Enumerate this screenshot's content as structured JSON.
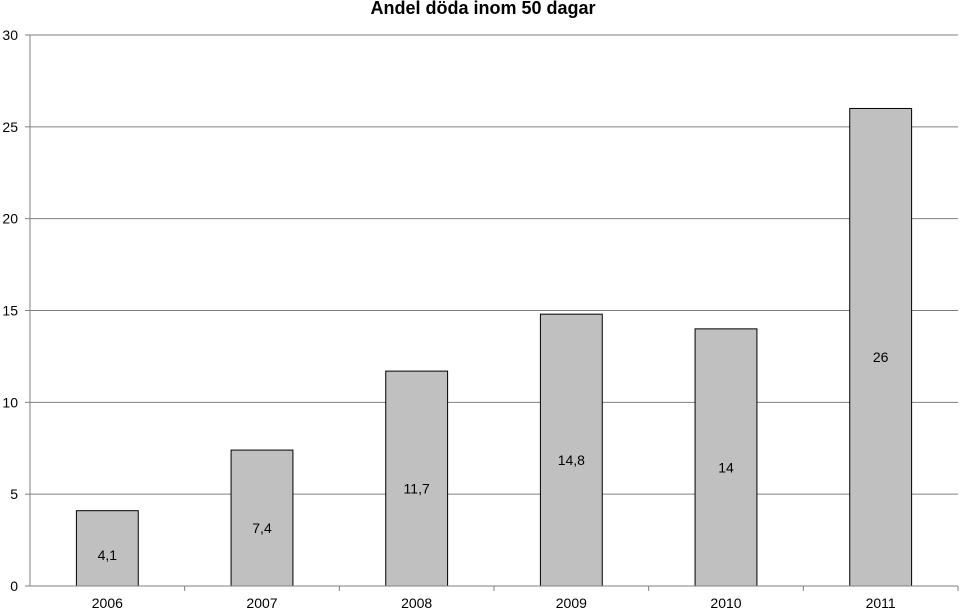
{
  "chart_data": {
    "type": "bar",
    "title": "Andel döda inom 50 dagar",
    "xlabel": "",
    "ylabel": "",
    "categories": [
      "2006",
      "2007",
      "2008",
      "2009",
      "2010",
      "2011"
    ],
    "values": [
      4.1,
      7.4,
      11.7,
      14.8,
      14,
      26
    ],
    "data_labels": [
      "4,1",
      "7,4",
      "11,7",
      "14,8",
      "14",
      "26"
    ],
    "ylim": [
      0,
      30
    ],
    "yticks": [
      0,
      5,
      10,
      15,
      20,
      25,
      30
    ],
    "ytick_labels": [
      "0",
      "5",
      "10",
      "15",
      "20",
      "25",
      "30"
    ],
    "grid": true,
    "legend": "none",
    "colors": {
      "bar_fill": "#c0c0c0",
      "bar_stroke": "#000000",
      "gridline": "#808080",
      "axis": "#808080"
    }
  }
}
